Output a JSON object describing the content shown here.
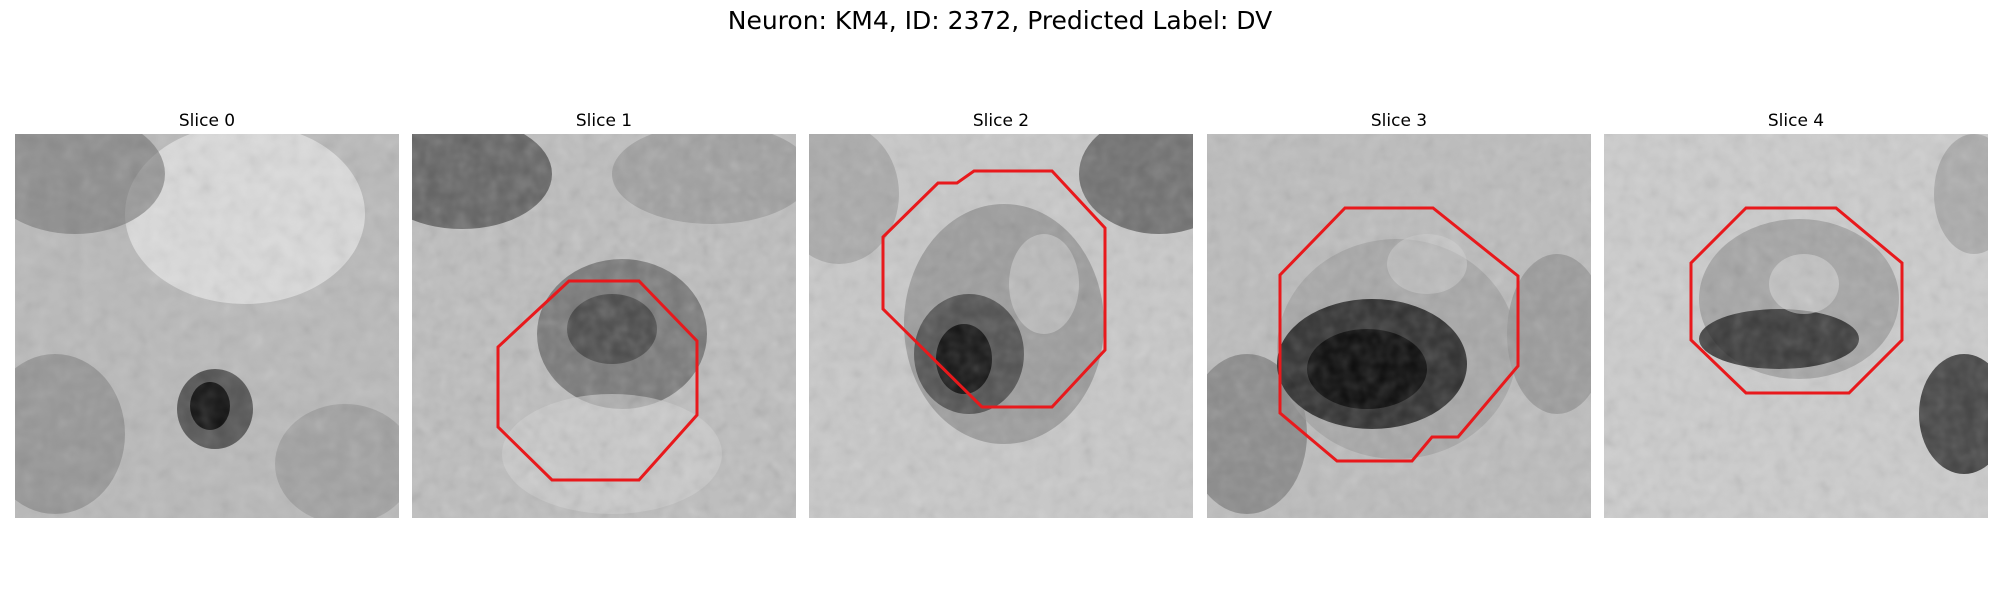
{
  "figure": {
    "title": "Neuron: KM4, ID: 2372, Predicted Label: DV"
  },
  "panels": [
    {
      "title": "Slice 0",
      "has_roi": false
    },
    {
      "title": "Slice 1",
      "has_roi": true
    },
    {
      "title": "Slice 2",
      "has_roi": true
    },
    {
      "title": "Slice 3",
      "has_roi": true
    },
    {
      "title": "Slice 4",
      "has_roi": true
    }
  ],
  "colors": {
    "roi_outline": "#e8191c",
    "background": "#ffffff"
  }
}
